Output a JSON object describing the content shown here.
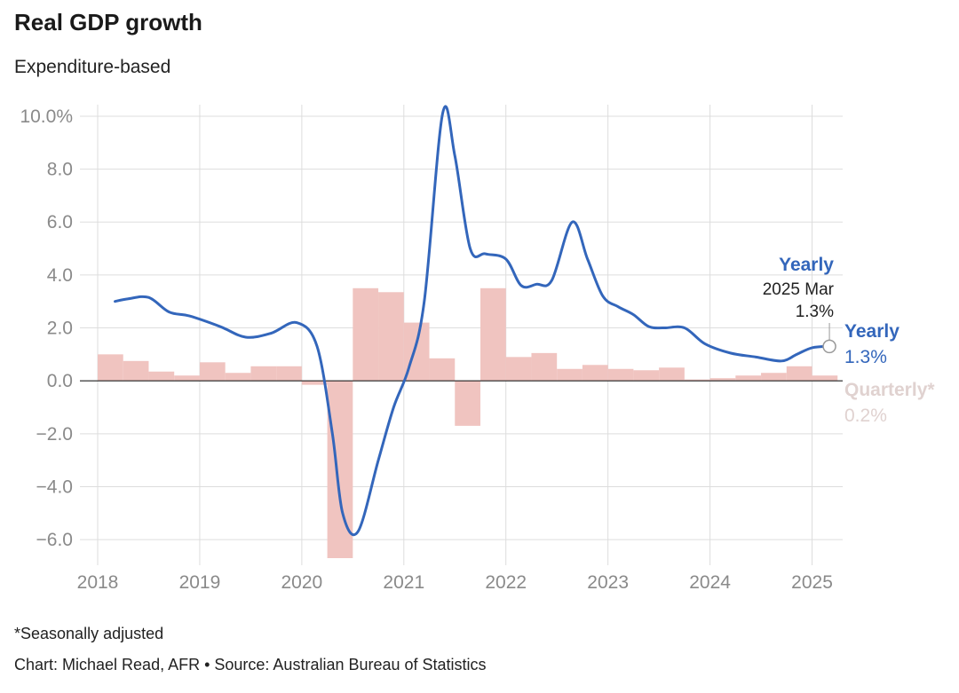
{
  "header": {
    "title": "Real GDP growth",
    "subtitle": "Expenditure-based"
  },
  "footer": {
    "footnote": "*Seasonally adjusted",
    "credit": "Chart: Michael Read, AFR • Source: Australian Bureau of Statistics"
  },
  "colors": {
    "yearly": "#3366bb",
    "quarterly": "#f0c4c0",
    "quarterly_label": "#e0d2d0",
    "grid": "#dddddd",
    "zero_line": "#222222"
  },
  "tooltip": {
    "name": "Yearly",
    "period": "2025 Mar",
    "value": "1.3%"
  },
  "end_labels": {
    "yearly_name": "Yearly",
    "yearly_value": "1.3%",
    "quarterly_name": "Quarterly*",
    "quarterly_value": "0.2%"
  },
  "chart_data": {
    "type": "line",
    "xlim": [
      2018,
      2025.3
    ],
    "ylim": [
      -6.7,
      10.3
    ],
    "grid": true,
    "x_ticks": [
      2018,
      2019,
      2020,
      2021,
      2022,
      2023,
      2024,
      2025
    ],
    "x_tick_labels": [
      "2018",
      "2019",
      "2020",
      "2021",
      "2022",
      "2023",
      "2024",
      "2025"
    ],
    "y_ticks": [
      10,
      8,
      6,
      4,
      2,
      0,
      -2,
      -4,
      -6
    ],
    "y_tick_labels": [
      "10.0%",
      "8.0",
      "6.0",
      "4.0",
      "2.0",
      "0.0",
      "−2.0",
      "−4.0",
      "−6.0"
    ],
    "series": [
      {
        "name": "Quarterly*",
        "type": "bar",
        "x": [
          2018.25,
          2018.5,
          2018.75,
          2019.0,
          2019.25,
          2019.5,
          2019.75,
          2020.0,
          2020.25,
          2020.5,
          2020.75,
          2021.0,
          2021.25,
          2021.5,
          2021.75,
          2022.0,
          2022.25,
          2022.5,
          2022.75,
          2023.0,
          2023.25,
          2023.5,
          2023.75,
          2024.0,
          2024.25,
          2024.5,
          2024.75,
          2025.0,
          2025.25
        ],
        "values": [
          1.0,
          0.75,
          0.35,
          0.2,
          0.7,
          0.3,
          0.55,
          0.55,
          -0.15,
          -6.7,
          3.5,
          3.35,
          2.2,
          0.85,
          -1.7,
          3.5,
          0.9,
          1.05,
          0.45,
          0.6,
          0.45,
          0.4,
          0.5,
          0.05,
          0.1,
          0.2,
          0.3,
          0.55,
          0.2
        ]
      },
      {
        "name": "Yearly",
        "type": "line",
        "x": [
          2018.17,
          2018.3,
          2018.5,
          2018.7,
          2018.9,
          2019.2,
          2019.45,
          2019.7,
          2019.95,
          2020.15,
          2020.3,
          2020.4,
          2020.55,
          2020.75,
          2020.9,
          2021.05,
          2021.2,
          2021.38,
          2021.5,
          2021.65,
          2021.8,
          2022.0,
          2022.15,
          2022.3,
          2022.45,
          2022.65,
          2022.8,
          2022.95,
          2023.1,
          2023.25,
          2023.4,
          2023.55,
          2023.75,
          2023.95,
          2024.2,
          2024.45,
          2024.7,
          2024.85,
          2025.0,
          2025.17
        ],
        "values": [
          3.0,
          3.1,
          3.15,
          2.6,
          2.45,
          2.05,
          1.65,
          1.8,
          2.2,
          1.3,
          -2.0,
          -5.0,
          -5.7,
          -3.0,
          -1.0,
          0.5,
          3.0,
          10.1,
          8.5,
          5.0,
          4.8,
          4.6,
          3.6,
          3.65,
          3.8,
          6.0,
          4.6,
          3.2,
          2.8,
          2.5,
          2.05,
          2.0,
          2.0,
          1.4,
          1.05,
          0.9,
          0.75,
          1.0,
          1.25,
          1.3
        ]
      }
    ]
  }
}
